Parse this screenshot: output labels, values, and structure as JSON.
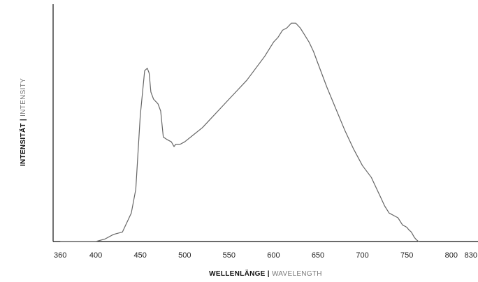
{
  "chart_data": {
    "type": "line",
    "xlabel": {
      "bold": "WELLENLÄNGE",
      "sep": " | ",
      "light": "WAVELENGTH"
    },
    "ylabel": {
      "bold": "INTENSITÄT",
      "sep": " | ",
      "light": "INTENSITY"
    },
    "xlim": [
      352,
      830
    ],
    "ylim": [
      0,
      100
    ],
    "xticks": [
      360,
      400,
      450,
      500,
      550,
      600,
      650,
      700,
      750,
      800,
      830
    ],
    "grid": false,
    "line_color": "#666666",
    "axis_color": "#111111",
    "series": [
      {
        "x": [
          360,
          380,
          400,
          410,
          420,
          430,
          440,
          445,
          450,
          455,
          458,
          460,
          462,
          465,
          470,
          473,
          476,
          480,
          485,
          488,
          490,
          495,
          500,
          510,
          520,
          530,
          540,
          550,
          560,
          570,
          580,
          590,
          595,
          600,
          605,
          610,
          615,
          620,
          625,
          630,
          635,
          640,
          645,
          650,
          660,
          670,
          680,
          690,
          700,
          710,
          715,
          720,
          725,
          730,
          735,
          740,
          745,
          750,
          752,
          755,
          758,
          760,
          763,
          764
        ],
        "y": [
          0,
          0,
          0,
          1,
          3,
          4,
          12,
          22,
          53,
          72,
          73,
          71,
          63,
          60,
          58,
          55,
          44,
          43,
          42,
          40,
          41,
          41,
          42,
          45,
          48,
          52,
          56,
          60,
          64,
          68,
          73,
          78,
          81,
          84,
          86,
          89,
          90,
          92,
          92,
          90,
          87,
          84,
          80,
          75,
          65,
          56,
          47,
          39,
          32,
          27,
          23,
          19,
          15,
          12,
          11,
          10,
          7,
          6,
          5,
          4,
          2,
          1,
          0,
          0
        ]
      }
    ]
  }
}
